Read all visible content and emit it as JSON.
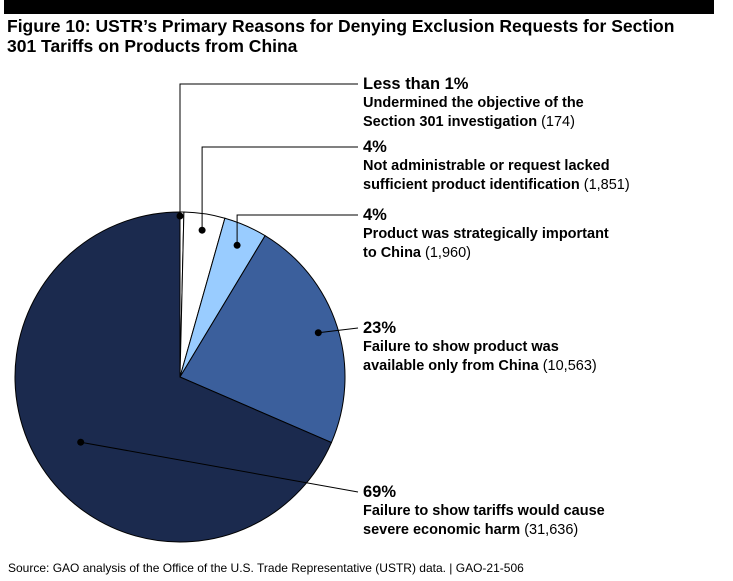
{
  "title_line1": "Figure 10: USTR’s Primary Reasons for Denying Exclusion Requests for Section",
  "title_line2": "301 Tariffs on Products from China",
  "source": "Source: GAO analysis of the Office of the U.S. Trade Representative (USTR) data.  |  GAO-21-506",
  "chart_data": {
    "type": "pie",
    "title": "Figure 10: USTR’s Primary Reasons for Denying Exclusion Requests for Section 301 Tariffs on Products from China",
    "start_angle": "12 o'clock, clockwise",
    "slices": [
      {
        "pct_label": "Less than 1%",
        "desc_lines": [
          "Undermined the objective of the",
          "Section 301 investigation"
        ],
        "count_label": "(174)",
        "value": 174,
        "color": "#ffffff"
      },
      {
        "pct_label": "4%",
        "desc_lines": [
          "Not administrable or request lacked",
          "sufficient product identification"
        ],
        "count_label": "(1,851)",
        "value": 1851,
        "color": "#ffffff"
      },
      {
        "pct_label": "4%",
        "desc_lines": [
          "Product was strategically important",
          "to China"
        ],
        "count_label": "(1,960)",
        "value": 1960,
        "color": "#99ccff"
      },
      {
        "pct_label": "23%",
        "desc_lines": [
          "Failure to show product was",
          "available only from China"
        ],
        "count_label": "(10,563)",
        "value": 10563,
        "color": "#3b5f9c"
      },
      {
        "pct_label": "69%",
        "desc_lines": [
          "Failure to show tariffs would cause",
          "severe economic harm"
        ],
        "count_label": "(31,636)",
        "value": 31636,
        "color": "#1b2a4e"
      }
    ]
  }
}
